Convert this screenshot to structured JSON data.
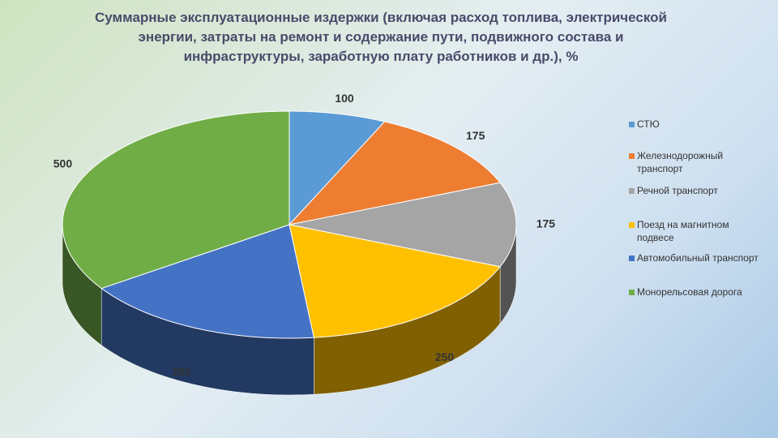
{
  "chart_data": {
    "type": "pie",
    "title": "Суммарные эксплуатационные  издержки (включая расход топлива, электрической энергии, затраты на ремонт и  содержание пути, подвижного состава и инфраструктуры, заработную плату работников и др.), %",
    "categories": [
      "СТЮ",
      "Железнодорожный транспорт",
      "Речной транспорт",
      "Поезд на магнитном подвесе",
      "Автомобильный транспорт",
      "Монорельсовая дорога"
    ],
    "values": [
      100,
      175,
      175,
      250,
      250,
      500
    ],
    "colors": [
      "#5b9bd5",
      "#ed7d31",
      "#a5a5a5",
      "#ffc000",
      "#4472c4",
      "#70ad47"
    ],
    "legend": "right"
  }
}
